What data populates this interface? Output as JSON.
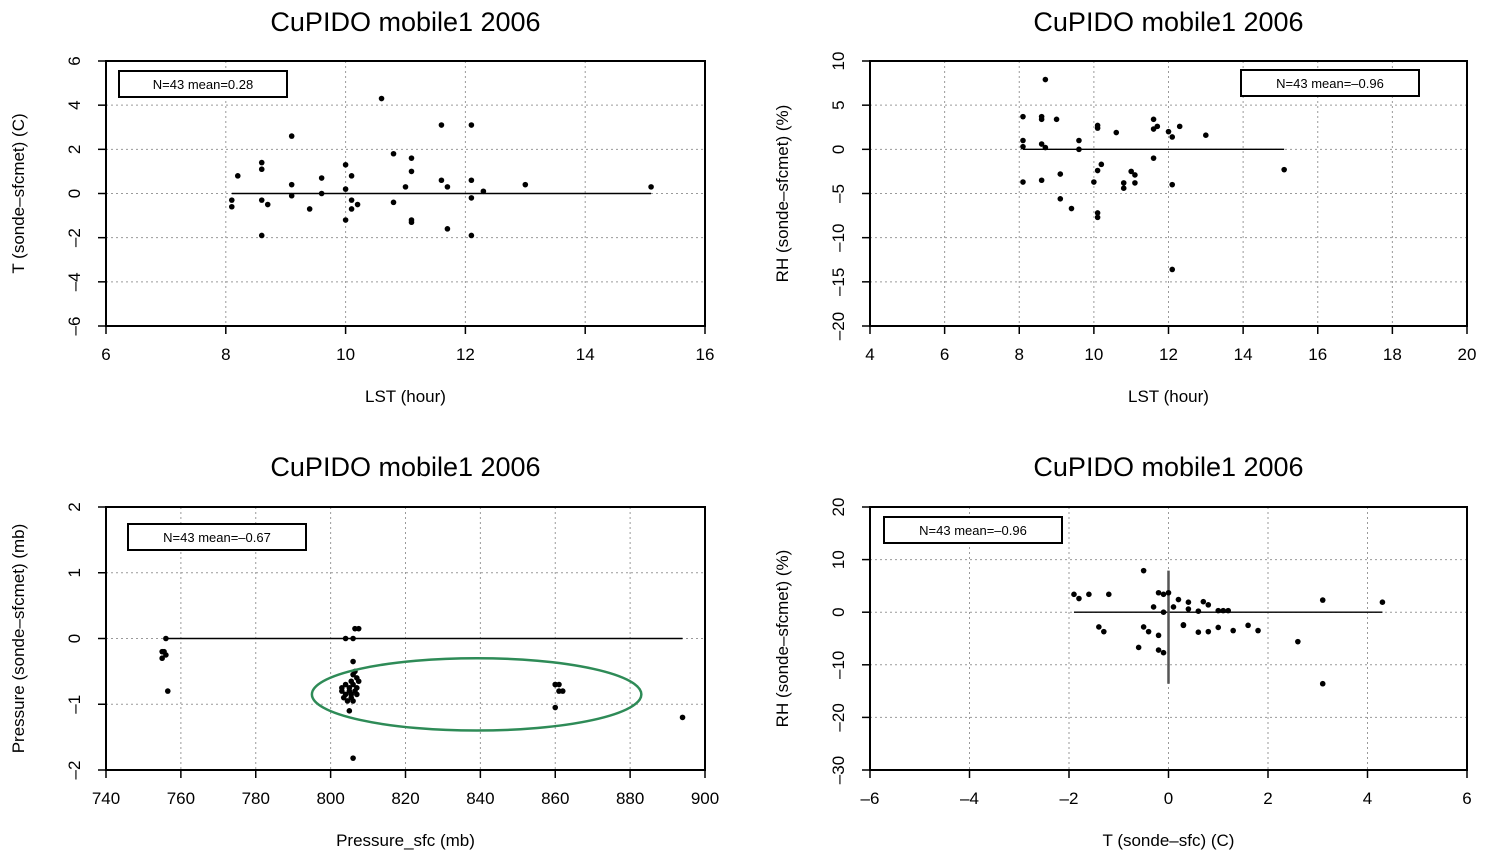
{
  "chart_data": [
    {
      "type": "scatter",
      "title": "CuPIDO mobile1 2006",
      "xlabel": "LST (hour)",
      "ylabel": "T (sonde–sfcmet) (C)",
      "xlim": [
        6,
        16
      ],
      "ylim": [
        -6,
        6
      ],
      "xticks": [
        "6",
        "8",
        "10",
        "12",
        "14",
        "16"
      ],
      "yticks": [
        "–6",
        "–4",
        "–2",
        "0",
        "2",
        "4",
        "6"
      ],
      "legend": "N=43 mean=0.28",
      "legend_position": "top-left",
      "grid": true,
      "hline": {
        "y": 0,
        "x_from": 8.1,
        "x_to": 15.1
      },
      "points": [
        [
          8.1,
          -0.3
        ],
        [
          8.1,
          -0.6
        ],
        [
          8.2,
          0.8
        ],
        [
          8.6,
          1.4
        ],
        [
          8.6,
          1.1
        ],
        [
          8.6,
          -0.3
        ],
        [
          8.6,
          -1.9
        ],
        [
          8.7,
          -0.5
        ],
        [
          9.1,
          2.6
        ],
        [
          9.1,
          0.4
        ],
        [
          9.1,
          -0.1
        ],
        [
          9.4,
          -0.7
        ],
        [
          9.6,
          0.7
        ],
        [
          9.6,
          0.0
        ],
        [
          10.0,
          1.3
        ],
        [
          10.1,
          0.8
        ],
        [
          10.0,
          0.2
        ],
        [
          10.1,
          -0.3
        ],
        [
          10.1,
          -0.7
        ],
        [
          10.0,
          -1.2
        ],
        [
          10.2,
          -0.5
        ],
        [
          10.6,
          4.3
        ],
        [
          10.8,
          1.8
        ],
        [
          10.8,
          -0.4
        ],
        [
          11.1,
          1.6
        ],
        [
          11.1,
          1.0
        ],
        [
          11.0,
          0.3
        ],
        [
          11.1,
          -1.2
        ],
        [
          11.1,
          -1.3
        ],
        [
          11.6,
          3.1
        ],
        [
          11.6,
          0.6
        ],
        [
          11.7,
          0.3
        ],
        [
          11.7,
          -1.6
        ],
        [
          12.1,
          3.1
        ],
        [
          12.1,
          0.6
        ],
        [
          12.1,
          -0.2
        ],
        [
          12.1,
          -1.9
        ],
        [
          12.3,
          0.1
        ],
        [
          13.0,
          0.4
        ],
        [
          15.1,
          0.3
        ]
      ]
    },
    {
      "type": "scatter",
      "title": "CuPIDO mobile1 2006",
      "xlabel": "LST (hour)",
      "ylabel": "RH (sonde–sfcmet) (%)",
      "xlim": [
        4,
        20
      ],
      "ylim": [
        -20,
        10
      ],
      "xticks": [
        "4",
        "6",
        "8",
        "10",
        "12",
        "14",
        "16",
        "18",
        "20"
      ],
      "yticks": [
        "–20",
        "–15",
        "–10",
        "–5",
        "0",
        "5",
        "10"
      ],
      "legend": "N=43 mean=–0.96",
      "legend_position": "top-right",
      "grid": true,
      "hline": {
        "y": 0,
        "x_from": 8.1,
        "x_to": 15.1
      },
      "points": [
        [
          8.1,
          3.7
        ],
        [
          8.1,
          1.0
        ],
        [
          8.1,
          0.3
        ],
        [
          8.1,
          -3.7
        ],
        [
          8.6,
          3.4
        ],
        [
          8.6,
          3.7
        ],
        [
          8.6,
          0.6
        ],
        [
          8.6,
          -3.5
        ],
        [
          8.7,
          7.9
        ],
        [
          8.7,
          0.2
        ],
        [
          9.0,
          3.4
        ],
        [
          9.1,
          -2.8
        ],
        [
          9.1,
          -5.6
        ],
        [
          9.4,
          -6.7
        ],
        [
          9.6,
          1.0
        ],
        [
          9.6,
          0.0
        ],
        [
          10.0,
          -3.7
        ],
        [
          10.1,
          2.7
        ],
        [
          10.1,
          2.4
        ],
        [
          10.1,
          -2.4
        ],
        [
          10.1,
          -7.2
        ],
        [
          10.1,
          -7.7
        ],
        [
          10.2,
          -1.7
        ],
        [
          10.6,
          1.9
        ],
        [
          10.8,
          -3.8
        ],
        [
          10.8,
          -4.4
        ],
        [
          11.0,
          -2.5
        ],
        [
          11.1,
          -2.9
        ],
        [
          11.1,
          -3.8
        ],
        [
          11.6,
          3.4
        ],
        [
          11.6,
          2.3
        ],
        [
          11.6,
          -1.0
        ],
        [
          11.7,
          2.6
        ],
        [
          12.0,
          2.0
        ],
        [
          12.1,
          1.4
        ],
        [
          12.1,
          -4.0
        ],
        [
          12.1,
          -13.6
        ],
        [
          12.3,
          2.6
        ],
        [
          13.0,
          1.6
        ],
        [
          15.1,
          -2.3
        ]
      ]
    },
    {
      "type": "scatter",
      "title": "CuPIDO mobile1 2006",
      "xlabel": "Pressure_sfc (mb)",
      "ylabel": "Pressure (sonde–sfcmet) (mb)",
      "xlim": [
        740,
        900
      ],
      "ylim": [
        -2,
        2
      ],
      "xticks": [
        "740",
        "760",
        "780",
        "800",
        "820",
        "840",
        "860",
        "880",
        "900"
      ],
      "yticks": [
        "–2",
        "–1",
        "0",
        "1",
        "2"
      ],
      "legend": "N=43 mean=–0.67",
      "legend_position": "top-left",
      "grid": true,
      "hline": {
        "y": 0,
        "x_from": 756,
        "x_to": 894
      },
      "points": [
        [
          755,
          -0.2
        ],
        [
          755,
          -0.3
        ],
        [
          755.5,
          -0.2
        ],
        [
          756,
          -0.25
        ],
        [
          756,
          0.0
        ],
        [
          756.5,
          -0.8
        ],
        [
          803,
          -0.8
        ],
        [
          803,
          -0.75
        ],
        [
          803.5,
          -0.9
        ],
        [
          804,
          -0.7
        ],
        [
          804,
          -0.85
        ],
        [
          804,
          0.0
        ],
        [
          804.5,
          -0.95
        ],
        [
          805,
          -0.8
        ],
        [
          805,
          -0.75
        ],
        [
          805,
          -1.1
        ],
        [
          805.5,
          -0.9
        ],
        [
          805.5,
          -0.65
        ],
        [
          805.5,
          -0.85
        ],
        [
          806,
          -0.35
        ],
        [
          806,
          -0.55
        ],
        [
          806,
          -0.7
        ],
        [
          806,
          0.0
        ],
        [
          806,
          -0.95
        ],
        [
          806,
          -1.82
        ],
        [
          806.5,
          -0.8
        ],
        [
          806.5,
          -0.5
        ],
        [
          806.5,
          0.15
        ],
        [
          807,
          -0.6
        ],
        [
          807,
          -0.75
        ],
        [
          807,
          -0.85
        ],
        [
          807.5,
          -0.65
        ],
        [
          807.5,
          0.15
        ],
        [
          860,
          -0.7
        ],
        [
          860,
          -0.7
        ],
        [
          860,
          -1.05
        ],
        [
          861,
          -0.7
        ],
        [
          861,
          -0.8
        ],
        [
          862,
          -0.8
        ],
        [
          894,
          -1.2
        ]
      ],
      "annotation": {
        "type": "ellipse",
        "center": [
          839,
          -0.85
        ],
        "rx": 44,
        "ry": 0.55,
        "color": "#2e8b57"
      }
    },
    {
      "type": "scatter",
      "title": "CuPIDO mobile1 2006",
      "xlabel": "T (sonde–sfc) (C)",
      "ylabel": "RH (sonde–sfcmet) (%)",
      "xlim": [
        -6,
        6
      ],
      "ylim": [
        -30,
        20
      ],
      "xticks": [
        "–6",
        "–4",
        "–2",
        "0",
        "2",
        "4",
        "6"
      ],
      "yticks": [
        "–30",
        "–20",
        "–10",
        "0",
        "10",
        "20"
      ],
      "legend": "N=43 mean=–0.96",
      "legend_position": "top-left",
      "grid": true,
      "hline": {
        "y": 0,
        "x_from": -1.9,
        "x_to": 4.3
      },
      "vline": {
        "x": 0,
        "y_from": -13.6,
        "y_to": 7.9
      },
      "points": [
        [
          -1.9,
          3.4
        ],
        [
          -1.8,
          2.6
        ],
        [
          -1.6,
          3.4
        ],
        [
          -1.4,
          -2.8
        ],
        [
          -1.3,
          -3.7
        ],
        [
          -1.2,
          3.4
        ],
        [
          -0.6,
          -6.7
        ],
        [
          -0.5,
          7.9
        ],
        [
          -0.5,
          -2.8
        ],
        [
          -0.4,
          -3.7
        ],
        [
          -0.3,
          1.0
        ],
        [
          -0.2,
          -4.4
        ],
        [
          -0.2,
          3.7
        ],
        [
          -0.2,
          -7.2
        ],
        [
          -0.1,
          -7.7
        ],
        [
          -0.1,
          3.4
        ],
        [
          -0.1,
          0.0
        ],
        [
          0.0,
          3.7
        ],
        [
          0.1,
          1.0
        ],
        [
          0.2,
          2.4
        ],
        [
          0.3,
          -2.4
        ],
        [
          0.3,
          -2.5
        ],
        [
          0.4,
          0.6
        ],
        [
          0.4,
          1.9
        ],
        [
          0.6,
          0.2
        ],
        [
          0.6,
          -3.8
        ],
        [
          0.7,
          2.0
        ],
        [
          0.8,
          1.4
        ],
        [
          0.8,
          -3.7
        ],
        [
          1.0,
          0.3
        ],
        [
          1.0,
          -2.9
        ],
        [
          1.1,
          0.3
        ],
        [
          1.3,
          -3.5
        ],
        [
          1.6,
          -2.5
        ],
        [
          1.8,
          -3.5
        ],
        [
          2.6,
          -5.6
        ],
        [
          3.1,
          2.3
        ],
        [
          3.1,
          -13.6
        ],
        [
          4.3,
          1.9
        ],
        [
          1.2,
          0.3
        ]
      ]
    }
  ]
}
